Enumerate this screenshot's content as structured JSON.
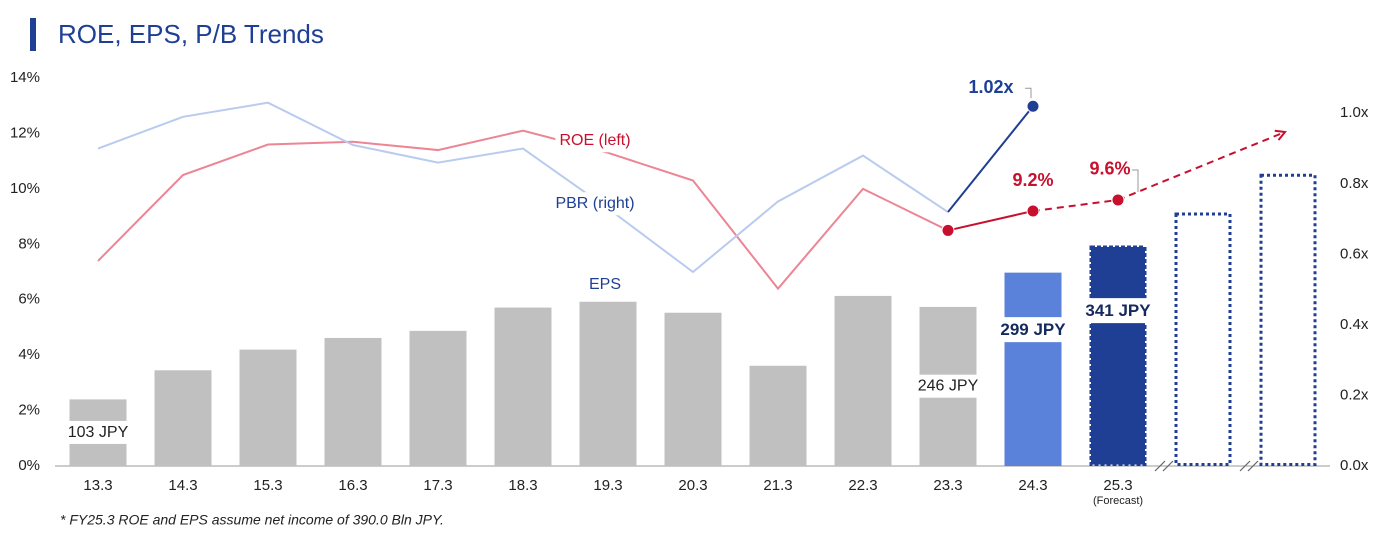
{
  "chart_data": {
    "type": "combo",
    "title": "ROE, EPS, P/B Trends",
    "footnote": "* FY25.3 ROE and EPS assume net income of 390.0 Bln JPY.",
    "categories": [
      "13.3",
      "14.3",
      "15.3",
      "16.3",
      "17.3",
      "18.3",
      "19.3",
      "20.3",
      "21.3",
      "22.3",
      "23.3",
      "24.3",
      "25.3",
      null,
      null
    ],
    "category_notes": [
      null,
      null,
      null,
      null,
      null,
      null,
      null,
      null,
      null,
      null,
      null,
      null,
      "(Forecast)",
      null,
      null
    ],
    "ylim": [
      0,
      14
    ],
    "yticks": [
      {
        "value": 0,
        "label": "0%"
      },
      {
        "value": 2,
        "label": "2%"
      },
      {
        "value": 4,
        "label": "4%"
      },
      {
        "value": 6,
        "label": "6%"
      },
      {
        "value": 8,
        "label": "8%"
      },
      {
        "value": 10,
        "label": "10%"
      },
      {
        "value": 12,
        "label": "12%"
      },
      {
        "value": 14,
        "label": "14%"
      }
    ],
    "y2lim": [
      0,
      1.1
    ],
    "y2ticks": [
      {
        "value": 0,
        "label": "0.0x"
      },
      {
        "value": 0.2,
        "label": "0.2x"
      },
      {
        "value": 0.4,
        "label": "0.4x"
      },
      {
        "value": 0.6,
        "label": "0.6x"
      },
      {
        "value": 0.8,
        "label": "0.8x"
      },
      {
        "value": 1.0,
        "label": "1.0x"
      }
    ],
    "y3lim": [
      0,
      600
    ],
    "series": [
      {
        "name": "EPS",
        "type": "bar",
        "axis": "y3",
        "color": "#c0c0c0",
        "colors": [
          "#c0c0c0",
          "#c0c0c0",
          "#c0c0c0",
          "#c0c0c0",
          "#c0c0c0",
          "#c0c0c0",
          "#c0c0c0",
          "#c0c0c0",
          "#c0c0c0",
          "#c0c0c0",
          "#c0c0c0",
          "#5b82db",
          "#1f3f94",
          "#ffffff",
          "#ffffff"
        ],
        "border_color": "#1f3f94",
        "border_styles": [
          null,
          null,
          null,
          null,
          null,
          null,
          null,
          null,
          null,
          null,
          null,
          null,
          "dashed",
          "dotted",
          "dotted"
        ],
        "values": [
          103,
          148,
          180,
          198,
          209,
          245,
          254,
          237,
          155,
          263,
          246,
          299,
          341,
          392,
          452
        ],
        "value_labels": [
          "103 JPY",
          null,
          null,
          null,
          null,
          null,
          null,
          null,
          null,
          null,
          "246 JPY",
          "299 JPY",
          "341 JPY",
          null,
          null
        ]
      },
      {
        "name": "ROE (left)",
        "type": "line",
        "axis": "y",
        "color": "#ec8594",
        "highlight_color": "#c8102e",
        "highlight_from": "23.3",
        "markers_from": "23.3",
        "dashed_from": "24.3",
        "forecast_arrow": true,
        "values": [
          7.4,
          10.5,
          11.6,
          11.7,
          11.4,
          12.1,
          11.3,
          10.3,
          6.4,
          10.0,
          8.5,
          9.2,
          9.6,
          null,
          null
        ],
        "value_labels": [
          null,
          null,
          null,
          null,
          null,
          null,
          null,
          null,
          null,
          null,
          null,
          "9.2%",
          "9.6%",
          null,
          null
        ]
      },
      {
        "name": "PBR (right)",
        "type": "line",
        "axis": "y2",
        "color": "#b9cbee",
        "highlight_color": "#1f3f94",
        "highlight_from": "23.3",
        "markers_from": "24.3",
        "values": [
          0.9,
          0.99,
          1.03,
          0.91,
          0.86,
          0.9,
          0.73,
          0.55,
          0.75,
          0.88,
          0.72,
          1.02,
          null,
          null,
          null
        ],
        "value_labels": [
          null,
          null,
          null,
          null,
          null,
          null,
          null,
          null,
          null,
          null,
          null,
          "1.02x",
          null,
          null,
          null
        ]
      }
    ]
  }
}
